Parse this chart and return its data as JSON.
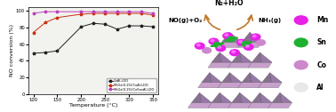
{
  "temperatures": [
    100,
    125,
    150,
    200,
    225,
    250,
    275,
    300,
    325,
    350
  ],
  "coAl_ldo": [
    49,
    50,
    52,
    81,
    85,
    84,
    78,
    82,
    82,
    81
  ],
  "mno_coAl_ldo": [
    74,
    86,
    92,
    96,
    97,
    97,
    97,
    97,
    97,
    95
  ],
  "mno_cosn_al_ldo": [
    97,
    99,
    99,
    99,
    99,
    99,
    99,
    99,
    99,
    97
  ],
  "colors": {
    "coAl": "#222222",
    "mno_coAl": "#cc3010",
    "mno_cosn": "#bb40bb"
  },
  "ylabel": "NO conversion (%)",
  "xlabel": "Temperature (°C)",
  "ylim": [
    0,
    105
  ],
  "xlim": [
    90,
    360
  ],
  "legend": [
    "CoAl-LDO",
    "MnOx(0.25)/CoAl-LDO",
    "MnOx(0.25)/CoSnxAl-LDO"
  ],
  "yticks": [
    0,
    20,
    40,
    60,
    80,
    100
  ],
  "xticks": [
    100,
    150,
    200,
    250,
    300,
    350
  ],
  "diagram_text": {
    "n2h2o": "N₂+H₂O",
    "noo2": "NO(g)+O₂",
    "nh3": "NH₃(g)"
  },
  "legend_colors": {
    "Mn": "#e820e8",
    "Sn": "#20b030",
    "Co": "#cc88cc",
    "Al": "#e8e8e8"
  },
  "layer_color_light": "#c8a0cc",
  "layer_color_dark": "#887090",
  "arrow_color": "#c07828"
}
